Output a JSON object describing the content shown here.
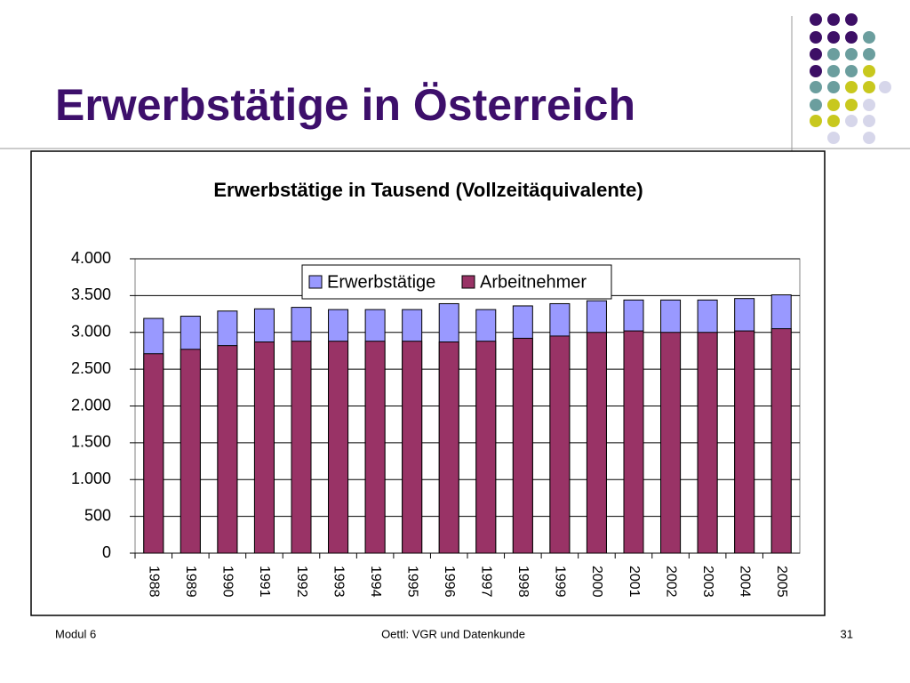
{
  "slide_title": "Erwerbstätige in Österreich",
  "footer": {
    "left": "Modul 6",
    "center": "Oettl: VGR und Datenkunde",
    "right": "31"
  },
  "chart_data": {
    "type": "bar",
    "title": "Erwerbstätige in Tausend (Vollzeitäquivalente)",
    "categories": [
      "1988",
      "1989",
      "1990",
      "1991",
      "1992",
      "1993",
      "1994",
      "1995",
      "1996",
      "1997",
      "1998",
      "1999",
      "2000",
      "2001",
      "2002",
      "2003",
      "2004",
      "2005"
    ],
    "series": [
      {
        "name": "Erwerbstätige",
        "color": "#9999ff",
        "values": [
          3190,
          3220,
          3290,
          3320,
          3340,
          3310,
          3310,
          3310,
          3390,
          3310,
          3360,
          3390,
          3430,
          3440,
          3440,
          3440,
          3460,
          3510
        ]
      },
      {
        "name": "Arbeitnehmer",
        "color": "#993366",
        "values": [
          2710,
          2770,
          2820,
          2870,
          2880,
          2880,
          2880,
          2880,
          2870,
          2880,
          2920,
          2950,
          3000,
          3020,
          3000,
          3000,
          3020,
          3050
        ]
      }
    ],
    "ylim": [
      0,
      4000
    ],
    "yticks": [
      0,
      500,
      {
        "value": 1000,
        "label": "1.000"
      },
      {
        "value": 1500,
        "label": "1.500"
      },
      {
        "value": 2000,
        "label": "2.000"
      },
      {
        "value": 2500,
        "label": "2.500"
      },
      {
        "value": 3000,
        "label": "3.000"
      },
      {
        "value": 3500,
        "label": "3.500"
      },
      {
        "value": 4000,
        "label": "4.000"
      }
    ],
    "grid": true,
    "legend": "top"
  }
}
